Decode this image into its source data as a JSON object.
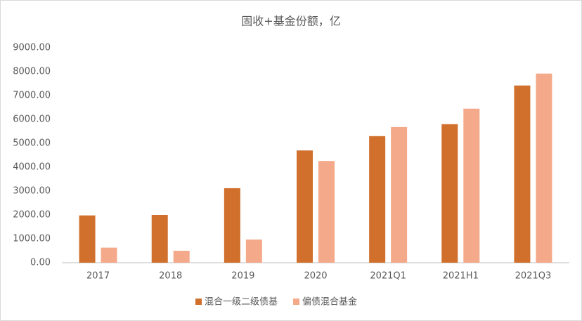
{
  "chart_data": {
    "type": "bar",
    "title": "固收+基金份额，亿",
    "categories": [
      "2017",
      "2018",
      "2019",
      "2020",
      "2021Q1",
      "2021H1",
      "2021Q3"
    ],
    "series": [
      {
        "name": "混合一级二级债基",
        "color": "#d0702c",
        "values": [
          1980,
          2000,
          3120,
          4700,
          5300,
          5800,
          7420
        ]
      },
      {
        "name": "偏债混合基金",
        "color": "#f4aa8a",
        "values": [
          630,
          500,
          970,
          4260,
          5680,
          6450,
          7920
        ]
      }
    ],
    "ylim": [
      0,
      9000
    ],
    "yticks": [
      {
        "value": 0,
        "label": "0.00"
      },
      {
        "value": 1000,
        "label": "1000.00"
      },
      {
        "value": 2000,
        "label": "2000.00"
      },
      {
        "value": 3000,
        "label": "3000.00"
      },
      {
        "value": 4000,
        "label": "4000.00"
      },
      {
        "value": 5000,
        "label": "5000.00"
      },
      {
        "value": 6000,
        "label": "6000.00"
      },
      {
        "value": 7000,
        "label": "7000.00"
      },
      {
        "value": 8000,
        "label": "8000.00"
      },
      {
        "value": 9000,
        "label": "9000.00"
      }
    ],
    "grid": false,
    "legend": "bottom"
  }
}
